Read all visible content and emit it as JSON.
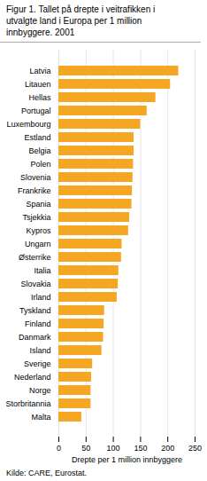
{
  "chart_data": {
    "type": "bar",
    "orientation": "horizontal",
    "title": "Figur 1. Tallet på drepte i veitrafikken i\nutvalgte land i Europa per 1 million\ninnbyggere. 2001",
    "categories": [
      "Latvia",
      "Litauen",
      "Hellas",
      "Portugal",
      "Luxembourg",
      "Estland",
      "Belgia",
      "Polen",
      "Slovenia",
      "Frankrike",
      "Spania",
      "Tsjekkia",
      "Kypros",
      "Ungarn",
      "Østerrike",
      "Italia",
      "Slovakia",
      "Irland",
      "Tyskland",
      "Finland",
      "Danmark",
      "Island",
      "Sverige",
      "Nederland",
      "Norge",
      "Storbritannia",
      "Malta"
    ],
    "values": [
      220,
      205,
      178,
      162,
      150,
      138,
      138,
      137,
      136,
      135,
      134,
      130,
      128,
      116,
      115,
      110,
      109,
      107,
      84,
      83,
      82,
      79,
      62,
      60,
      59,
      59,
      42
    ],
    "color": "#F5A623",
    "xlabel": "Drepte per 1 million innbyggere",
    "source": "Kilde: CARE, Eurostat.",
    "xlim": [
      0,
      250
    ],
    "xticks": [
      0,
      50,
      100,
      150,
      200,
      250
    ],
    "grid": true
  }
}
